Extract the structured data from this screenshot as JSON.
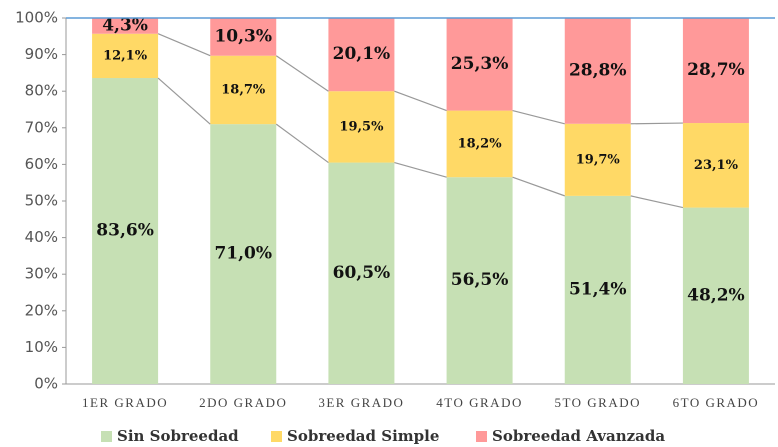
{
  "chart_data": {
    "type": "stacked_bar",
    "categories": [
      "1ER GRADO",
      "2DO GRADO",
      "3ER GRADO",
      "4TO GRADO",
      "5TO GRADO",
      "6TO GRADO"
    ],
    "series": [
      {
        "name": "Sin Sobreedad",
        "color": "#c6e0b4",
        "values": [
          83.6,
          71.0,
          60.5,
          56.5,
          51.4,
          48.2
        ],
        "value_labels": [
          "83,6%",
          "71,0%",
          "60,5%",
          "56,5%",
          "51,4%",
          "48,2%"
        ]
      },
      {
        "name": "Sobreedad Simple",
        "color": "#ffd966",
        "values": [
          12.1,
          18.7,
          19.5,
          18.2,
          19.7,
          23.1
        ],
        "value_labels": [
          "12,1%",
          "18,7%",
          "19,5%",
          "18,2%",
          "19,7%",
          "23,1%"
        ]
      },
      {
        "name": "Sobreedad Avanzada",
        "color": "#ff9999",
        "values": [
          4.3,
          10.3,
          20.1,
          25.3,
          28.8,
          28.7
        ],
        "value_labels": [
          "4,3%",
          "10,3%",
          "20,1%",
          "25,3%",
          "28,8%",
          "28,7%"
        ]
      }
    ],
    "ylim": [
      0,
      100
    ],
    "yticks": [
      {
        "value": 0,
        "label": "0%"
      },
      {
        "value": 10,
        "label": "10%"
      },
      {
        "value": 20,
        "label": "20%"
      },
      {
        "value": 30,
        "label": "30%"
      },
      {
        "value": 40,
        "label": "40%"
      },
      {
        "value": 50,
        "label": "50%"
      },
      {
        "value": 60,
        "label": "60%"
      },
      {
        "value": 70,
        "label": "70%"
      },
      {
        "value": 80,
        "label": "80%"
      },
      {
        "value": 90,
        "label": "90%"
      },
      {
        "value": 100,
        "label": "100%"
      }
    ],
    "legend": "bottom",
    "grid": false
  }
}
